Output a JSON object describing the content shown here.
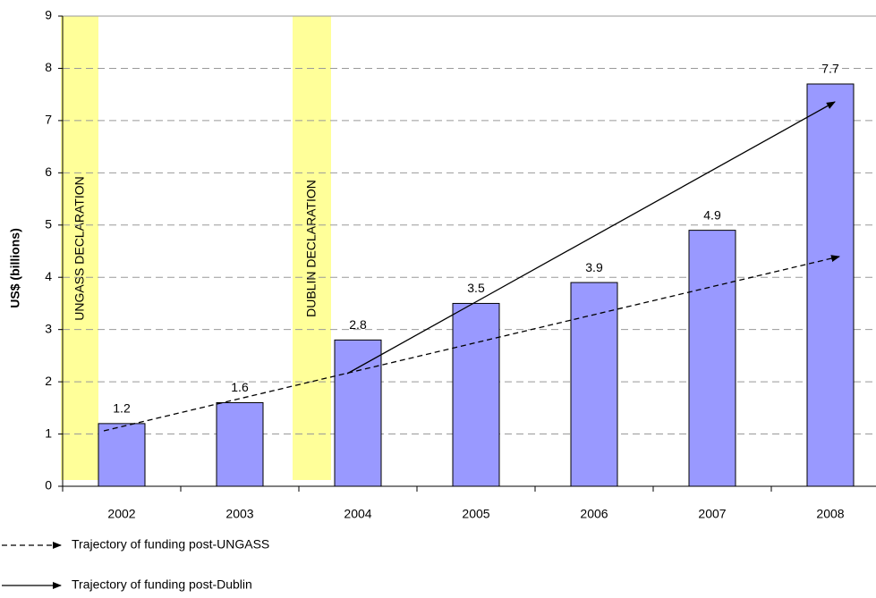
{
  "chart_data": {
    "type": "bar",
    "ylabel": "US$ (billions)",
    "categories": [
      "2002",
      "2003",
      "2004",
      "2005",
      "2006",
      "2007",
      "2008"
    ],
    "values": [
      1.2,
      1.6,
      2.8,
      3.5,
      3.9,
      4.9,
      7.7
    ],
    "color": "#9999ff",
    "ylim": [
      0,
      9
    ],
    "yticks": [
      0,
      1,
      2,
      3,
      4,
      5,
      6,
      7,
      8,
      9
    ],
    "grid": true,
    "annotations": [
      "UNGASS DECLARATION",
      "DUBLIN DECLARATION"
    ],
    "legend": [
      {
        "label": "Trajectory of funding post-UNGASS",
        "style": "dashed"
      },
      {
        "label": "Trajectory of funding post-Dublin",
        "style": "solid"
      }
    ]
  }
}
